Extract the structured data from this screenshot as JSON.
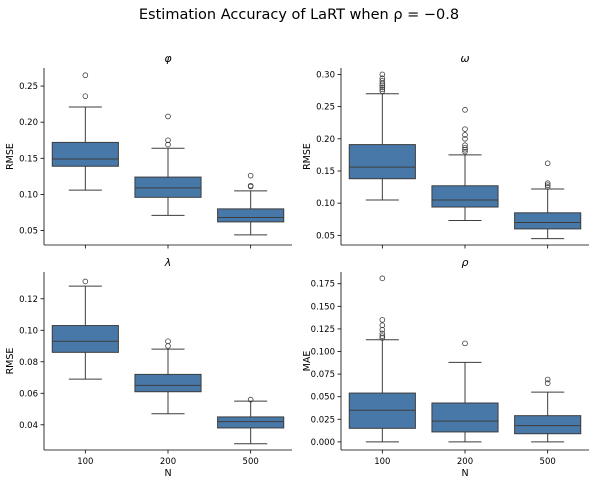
{
  "figure": {
    "title": "Estimation Accuracy of LaRT when ρ = −0.8",
    "box_color": "#4878a8",
    "line_color": "#3d3d3d"
  },
  "chart_data": [
    {
      "type": "box",
      "title": "φ",
      "ylabel": "RMSE",
      "xlabel": "",
      "categories": [
        "100",
        "200",
        "500"
      ],
      "ylim": [
        0.03,
        0.275
      ],
      "yticks": [
        "0.05",
        "0.10",
        "0.15",
        "0.20",
        "0.25"
      ],
      "boxes": [
        {
          "whislo": 0.106,
          "q1": 0.139,
          "med": 0.149,
          "q3": 0.172,
          "whishi": 0.221,
          "fliers": [
            0.236,
            0.265
          ]
        },
        {
          "whislo": 0.071,
          "q1": 0.096,
          "med": 0.109,
          "q3": 0.124,
          "whishi": 0.164,
          "fliers": [
            0.169,
            0.175,
            0.208
          ]
        },
        {
          "whislo": 0.044,
          "q1": 0.062,
          "med": 0.068,
          "q3": 0.08,
          "whishi": 0.105,
          "fliers": [
            0.111,
            0.112,
            0.126
          ]
        }
      ]
    },
    {
      "type": "box",
      "title": "ω",
      "ylabel": "RMSE",
      "xlabel": "",
      "categories": [
        "100",
        "200",
        "500"
      ],
      "ylim": [
        0.035,
        0.31
      ],
      "yticks": [
        "0.05",
        "0.10",
        "0.15",
        "0.20",
        "0.25",
        "0.30"
      ],
      "boxes": [
        {
          "whislo": 0.105,
          "q1": 0.138,
          "med": 0.156,
          "q3": 0.191,
          "whishi": 0.27,
          "fliers": [
            0.274,
            0.277,
            0.28,
            0.283,
            0.286,
            0.29,
            0.294,
            0.3
          ]
        },
        {
          "whislo": 0.073,
          "q1": 0.094,
          "med": 0.105,
          "q3": 0.127,
          "whishi": 0.175,
          "fliers": [
            0.18,
            0.183,
            0.186,
            0.19,
            0.2,
            0.206,
            0.215,
            0.245
          ]
        },
        {
          "whislo": 0.045,
          "q1": 0.06,
          "med": 0.07,
          "q3": 0.085,
          "whishi": 0.122,
          "fliers": [
            0.125,
            0.128,
            0.131,
            0.162
          ]
        }
      ]
    },
    {
      "type": "box",
      "title": "λ",
      "ylabel": "RMSE",
      "xlabel": "N",
      "categories": [
        "100",
        "200",
        "500"
      ],
      "ylim": [
        0.024,
        0.137
      ],
      "yticks": [
        "0.04",
        "0.06",
        "0.08",
        "0.10",
        "0.12"
      ],
      "boxes": [
        {
          "whislo": 0.069,
          "q1": 0.086,
          "med": 0.093,
          "q3": 0.103,
          "whishi": 0.128,
          "fliers": [
            0.131
          ]
        },
        {
          "whislo": 0.047,
          "q1": 0.061,
          "med": 0.065,
          "q3": 0.072,
          "whishi": 0.088,
          "fliers": [
            0.09,
            0.093
          ]
        },
        {
          "whislo": 0.028,
          "q1": 0.038,
          "med": 0.042,
          "q3": 0.045,
          "whishi": 0.055,
          "fliers": [
            0.056
          ]
        }
      ]
    },
    {
      "type": "box",
      "title": "ρ",
      "ylabel": "MAE",
      "xlabel": "N",
      "categories": [
        "100",
        "200",
        "500"
      ],
      "ylim": [
        -0.009,
        0.188
      ],
      "yticks": [
        "0.000",
        "0.025",
        "0.050",
        "0.075",
        "0.100",
        "0.125",
        "0.150",
        "0.175"
      ],
      "boxes": [
        {
          "whislo": 0.0,
          "q1": 0.015,
          "med": 0.035,
          "q3": 0.054,
          "whishi": 0.113,
          "fliers": [
            0.115,
            0.117,
            0.12,
            0.124,
            0.129,
            0.135,
            0.181
          ]
        },
        {
          "whislo": 0.0,
          "q1": 0.011,
          "med": 0.023,
          "q3": 0.043,
          "whishi": 0.088,
          "fliers": [
            0.109
          ]
        },
        {
          "whislo": 0.0,
          "q1": 0.009,
          "med": 0.018,
          "q3": 0.029,
          "whishi": 0.055,
          "fliers": [
            0.065,
            0.069
          ]
        }
      ]
    }
  ]
}
